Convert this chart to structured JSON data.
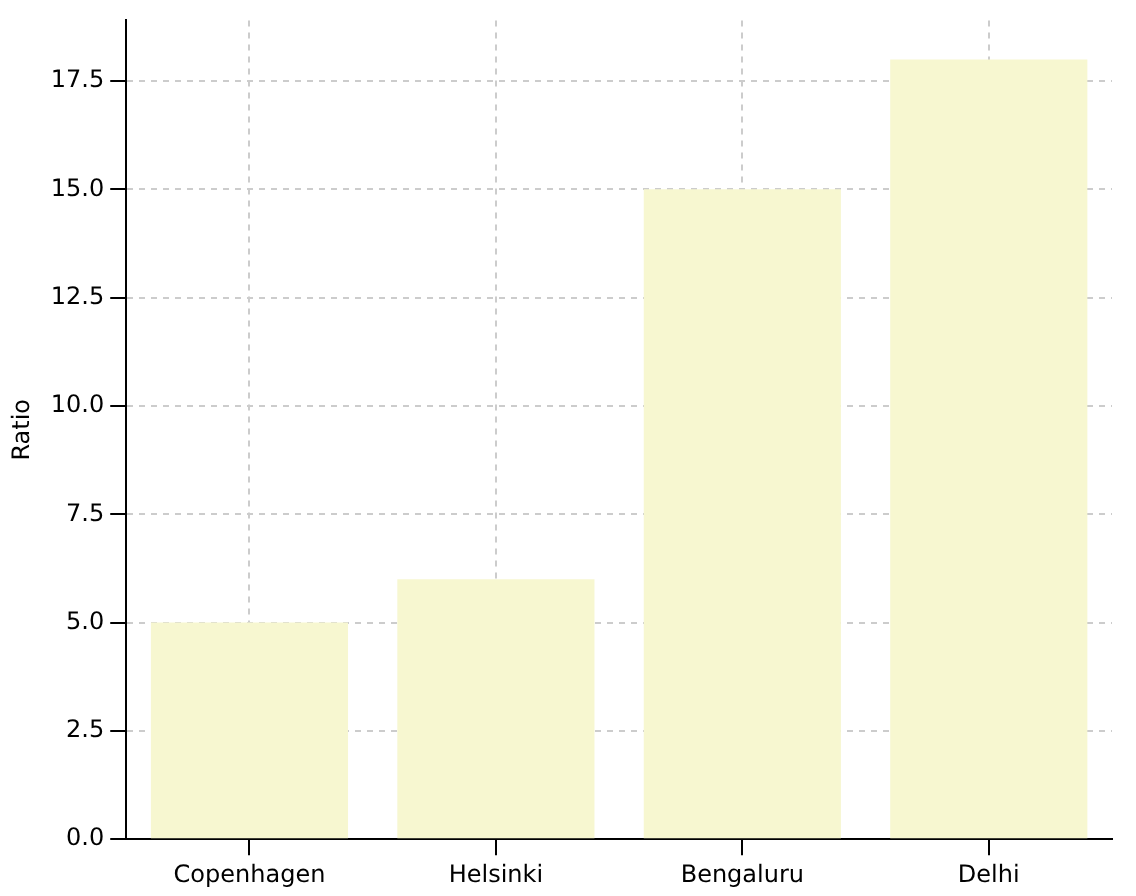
{
  "chart_data": {
    "type": "bar",
    "ylabel": "Ratio",
    "categories": [
      "Copenhagen",
      "Helsinki",
      "Bengaluru",
      "Delhi"
    ],
    "values": [
      5,
      6,
      15,
      18
    ],
    "color": "#f7f7d0",
    "ylim": [
      0,
      18.9
    ],
    "yticks": [
      {
        "value": 0,
        "label": "0.0"
      },
      {
        "value": 2.5,
        "label": "2.5"
      },
      {
        "value": 5,
        "label": "5.0"
      },
      {
        "value": 7.5,
        "label": "7.5"
      },
      {
        "value": 10,
        "label": "10.0"
      },
      {
        "value": 12.5,
        "label": "12.5"
      },
      {
        "value": 15,
        "label": "15.0"
      },
      {
        "value": 17.5,
        "label": "17.5"
      }
    ],
    "grid": true
  }
}
